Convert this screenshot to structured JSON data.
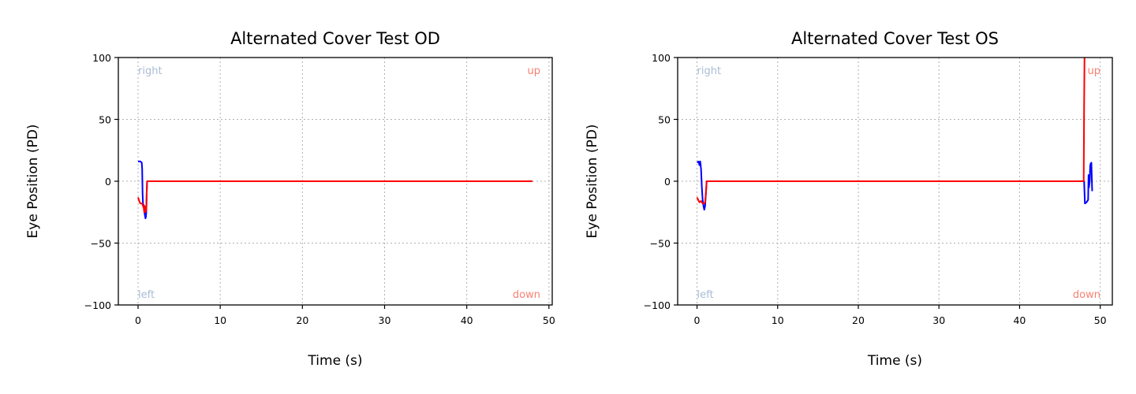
{
  "chart_data": [
    {
      "type": "line",
      "title": "Alternated Cover Test OD",
      "xlabel": "Time (s)",
      "ylabel": "Eye Position (PD)",
      "xlim": [
        -2.4,
        50.4
      ],
      "ylim": [
        -100,
        100
      ],
      "xticks": [
        0,
        10,
        20,
        30,
        40,
        50
      ],
      "yticks": [
        100,
        50,
        0,
        -50,
        -100
      ],
      "xtick_labels": [
        "0",
        "10",
        "20",
        "30",
        "40",
        "50"
      ],
      "ytick_labels": [
        "100",
        "50",
        "0",
        "−50",
        "−100"
      ],
      "grid": true,
      "annotations": [
        {
          "text": "right",
          "position": "top-left",
          "color": "#a9bcd5"
        },
        {
          "text": "left",
          "position": "bottom-left",
          "color": "#a9bcd5"
        },
        {
          "text": "up",
          "position": "top-right",
          "color": "#fa8072"
        },
        {
          "text": "down",
          "position": "bottom-right",
          "color": "#fa8072"
        }
      ],
      "series": [
        {
          "color": "#0000ff",
          "x": [
            0,
            0.3,
            0.45,
            0.5,
            0.55,
            0.6,
            0.7,
            0.75,
            0.8,
            0.85,
            0.9,
            0.95,
            1.0,
            1.05,
            1.1
          ],
          "y": [
            16,
            16,
            15,
            10,
            -10,
            -18,
            -20,
            -22,
            -26,
            -28,
            -30,
            -29,
            -25,
            -10,
            0
          ]
        },
        {
          "color": "#ff0000",
          "x": [
            0,
            0.2,
            0.3,
            0.5,
            0.6,
            0.7,
            0.75,
            0.8,
            0.85,
            0.9,
            0.95,
            1.0,
            1.05,
            1.1,
            48
          ],
          "y": [
            -13,
            -17,
            -18,
            -18,
            -20,
            -22,
            -25,
            -20,
            -22,
            -25,
            -24,
            -23,
            -10,
            0,
            0
          ]
        }
      ]
    },
    {
      "type": "line",
      "title": "Alternated Cover Test OS",
      "xlabel": "Time (s)",
      "ylabel": "Eye Position (PD)",
      "xlim": [
        -2.4,
        51.5
      ],
      "ylim": [
        -100,
        100
      ],
      "xticks": [
        0,
        10,
        20,
        30,
        40,
        50
      ],
      "yticks": [
        100,
        50,
        0,
        -50,
        -100
      ],
      "xtick_labels": [
        "0",
        "10",
        "20",
        "30",
        "40",
        "50"
      ],
      "ytick_labels": [
        "100",
        "50",
        "0",
        "−50",
        "−100"
      ],
      "grid": true,
      "annotations": [
        {
          "text": "right",
          "position": "top-left",
          "color": "#a9bcd5"
        },
        {
          "text": "left",
          "position": "bottom-left",
          "color": "#a9bcd5"
        },
        {
          "text": "up",
          "position": "top-right",
          "color": "#fa8072"
        },
        {
          "text": "down",
          "position": "bottom-right",
          "color": "#fa8072"
        }
      ],
      "series": [
        {
          "color": "#0000ff",
          "x": [
            0,
            0.2,
            0.3,
            0.4,
            0.5,
            0.6,
            0.7,
            0.8,
            0.9,
            1.0,
            1.1,
            1.2,
            48,
            48.1,
            48.3,
            48.5,
            48.55,
            48.6,
            48.7,
            48.75,
            48.8,
            48.9,
            49.0
          ],
          "y": [
            15,
            16,
            13,
            16,
            10,
            -5,
            -15,
            -20,
            -23,
            -20,
            -10,
            0,
            0,
            -18,
            -17,
            -15,
            5,
            -5,
            0,
            12,
            14,
            15,
            -8
          ]
        },
        {
          "color": "#ff0000",
          "x": [
            0,
            0.3,
            0.5,
            0.7,
            0.9,
            1.0,
            1.1,
            1.2,
            47.95,
            48.0,
            48.05
          ],
          "y": [
            -13,
            -17,
            -16,
            -18,
            -18,
            -17,
            -10,
            0,
            0,
            60,
            100
          ]
        }
      ]
    }
  ]
}
